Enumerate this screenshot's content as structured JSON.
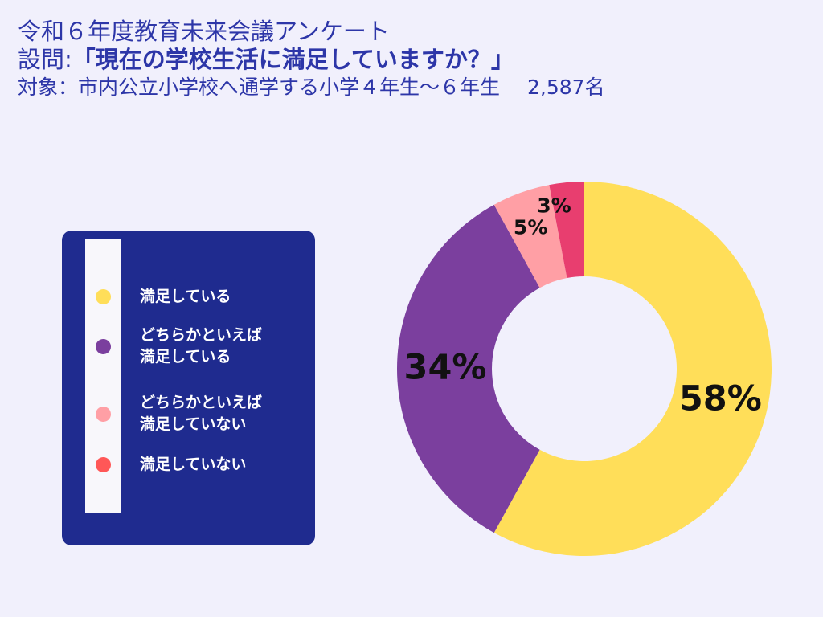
{
  "header": {
    "title": "令和６年度教育未来会議アンケート",
    "question_prefix": "設問:",
    "question": "「現在の学校生活に満足していますか？」",
    "target": "対象：市内公立小学校へ通学する小学４年生〜６年生",
    "respondents": "2,587名"
  },
  "colors": {
    "background": "#f1f0fc",
    "header_text": "#2d36a8",
    "legend_panel": "#1f2b8f"
  },
  "legend": {
    "items": [
      {
        "label": "満足している",
        "color": "#ffde59"
      },
      {
        "label": "どちらかといえば\n満足している",
        "color": "#7b3f9e"
      },
      {
        "label": "どちらかといえば\n満足していない",
        "color": "#ff9fa5"
      },
      {
        "label": "満足していない",
        "color": "#ff5757"
      }
    ]
  },
  "chart_data": {
    "type": "pie",
    "variant": "donut",
    "title": "「現在の学校生活に満足していますか？」",
    "categories": [
      "満足している",
      "どちらかといえば満足している",
      "どちらかといえば満足していない",
      "満足していない"
    ],
    "values": [
      58,
      34,
      5,
      3
    ],
    "labels": [
      "58%",
      "34%",
      "5%",
      "3%"
    ],
    "colors": [
      "#ffde59",
      "#7b3f9e",
      "#ff9fa5",
      "#e83e6f"
    ],
    "start_angle": "12 o'clock",
    "direction": "clockwise"
  }
}
